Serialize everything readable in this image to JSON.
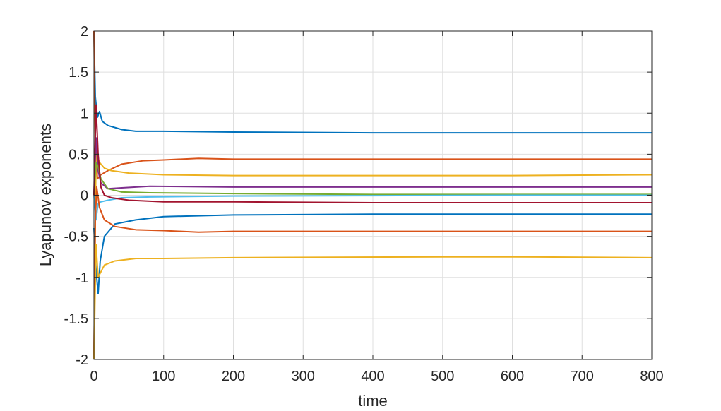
{
  "chart_data": {
    "type": "line",
    "title": "",
    "xlabel": "time",
    "ylabel": "Lyapunov exponents",
    "xlim": [
      0,
      800
    ],
    "ylim": [
      -2,
      2
    ],
    "xticks": [
      0,
      100,
      200,
      300,
      400,
      500,
      600,
      700,
      800
    ],
    "yticks": [
      2,
      1.5,
      1,
      0.5,
      0,
      -0.5,
      -1,
      -1.5,
      -2
    ],
    "xtick_labels": [
      "0",
      "100",
      "200",
      "300",
      "400",
      "500",
      "600",
      "700",
      "800"
    ],
    "ytick_labels": [
      "2",
      "1.5",
      "1",
      "0.5",
      "0",
      "-0.5",
      "-1",
      "-1.5",
      "-2"
    ],
    "grid": true,
    "legend": "none",
    "series": [
      {
        "color": "#0072BD",
        "x": [
          0,
          2,
          5,
          8,
          12,
          20,
          40,
          60,
          100,
          200,
          400,
          600,
          800
        ],
        "y": [
          2.0,
          1.2,
          0.95,
          1.02,
          0.9,
          0.85,
          0.8,
          0.78,
          0.78,
          0.77,
          0.76,
          0.76,
          0.76
        ]
      },
      {
        "color": "#D95319",
        "x": [
          0,
          2,
          5,
          10,
          20,
          40,
          70,
          100,
          150,
          200,
          400,
          600,
          800
        ],
        "y": [
          2.0,
          0.6,
          0.2,
          0.25,
          0.3,
          0.38,
          0.42,
          0.43,
          0.45,
          0.44,
          0.44,
          0.44,
          0.44
        ]
      },
      {
        "color": "#EDB120",
        "x": [
          0,
          3,
          8,
          15,
          25,
          50,
          100,
          200,
          400,
          600,
          800
        ],
        "y": [
          -2.0,
          0.5,
          0.4,
          0.33,
          0.3,
          0.27,
          0.25,
          0.24,
          0.24,
          0.24,
          0.25
        ]
      },
      {
        "color": "#7E2F8E",
        "x": [
          0,
          3,
          6,
          10,
          20,
          40,
          80,
          200,
          400,
          600,
          800
        ],
        "y": [
          0.0,
          0.7,
          0.3,
          0.15,
          0.08,
          0.09,
          0.11,
          0.1,
          0.1,
          0.1,
          0.1
        ]
      },
      {
        "color": "#77AC30",
        "x": [
          0,
          3,
          6,
          10,
          20,
          40,
          80,
          200,
          400,
          600,
          800
        ],
        "y": [
          0.0,
          0.4,
          0.35,
          0.2,
          0.08,
          0.04,
          0.03,
          0.02,
          0.01,
          0.01,
          0.01
        ]
      },
      {
        "color": "#4DBEEE",
        "x": [
          0,
          3,
          6,
          10,
          20,
          40,
          80,
          200,
          400,
          600,
          800
        ],
        "y": [
          0.0,
          -0.3,
          -0.1,
          -0.08,
          -0.06,
          -0.03,
          -0.02,
          -0.01,
          -0.005,
          0.0,
          0.0
        ]
      },
      {
        "color": "#A2142F",
        "x": [
          0,
          3,
          6,
          10,
          15,
          25,
          50,
          100,
          200,
          400,
          600,
          800
        ],
        "y": [
          0.0,
          1.1,
          0.5,
          0.1,
          0.0,
          -0.03,
          -0.06,
          -0.08,
          -0.08,
          -0.09,
          -0.09,
          -0.09
        ]
      },
      {
        "color": "#0072BD",
        "x": [
          0,
          3,
          6,
          9,
          15,
          30,
          60,
          100,
          200,
          400,
          600,
          800
        ],
        "y": [
          -0.4,
          -0.9,
          -1.2,
          -0.8,
          -0.5,
          -0.35,
          -0.3,
          -0.26,
          -0.24,
          -0.23,
          -0.23,
          -0.23
        ]
      },
      {
        "color": "#D95319",
        "x": [
          0,
          2,
          4,
          8,
          15,
          30,
          60,
          100,
          150,
          200,
          400,
          600,
          800
        ],
        "y": [
          -2.0,
          -0.3,
          0.1,
          -0.15,
          -0.3,
          -0.38,
          -0.42,
          -0.43,
          -0.45,
          -0.44,
          -0.44,
          -0.44,
          -0.44
        ]
      },
      {
        "color": "#EDB120",
        "x": [
          0,
          3,
          6,
          9,
          15,
          30,
          60,
          100,
          200,
          500,
          600,
          800
        ],
        "y": [
          -2.0,
          -0.6,
          -1.0,
          -0.95,
          -0.85,
          -0.8,
          -0.77,
          -0.77,
          -0.76,
          -0.75,
          -0.75,
          -0.76
        ]
      }
    ]
  }
}
